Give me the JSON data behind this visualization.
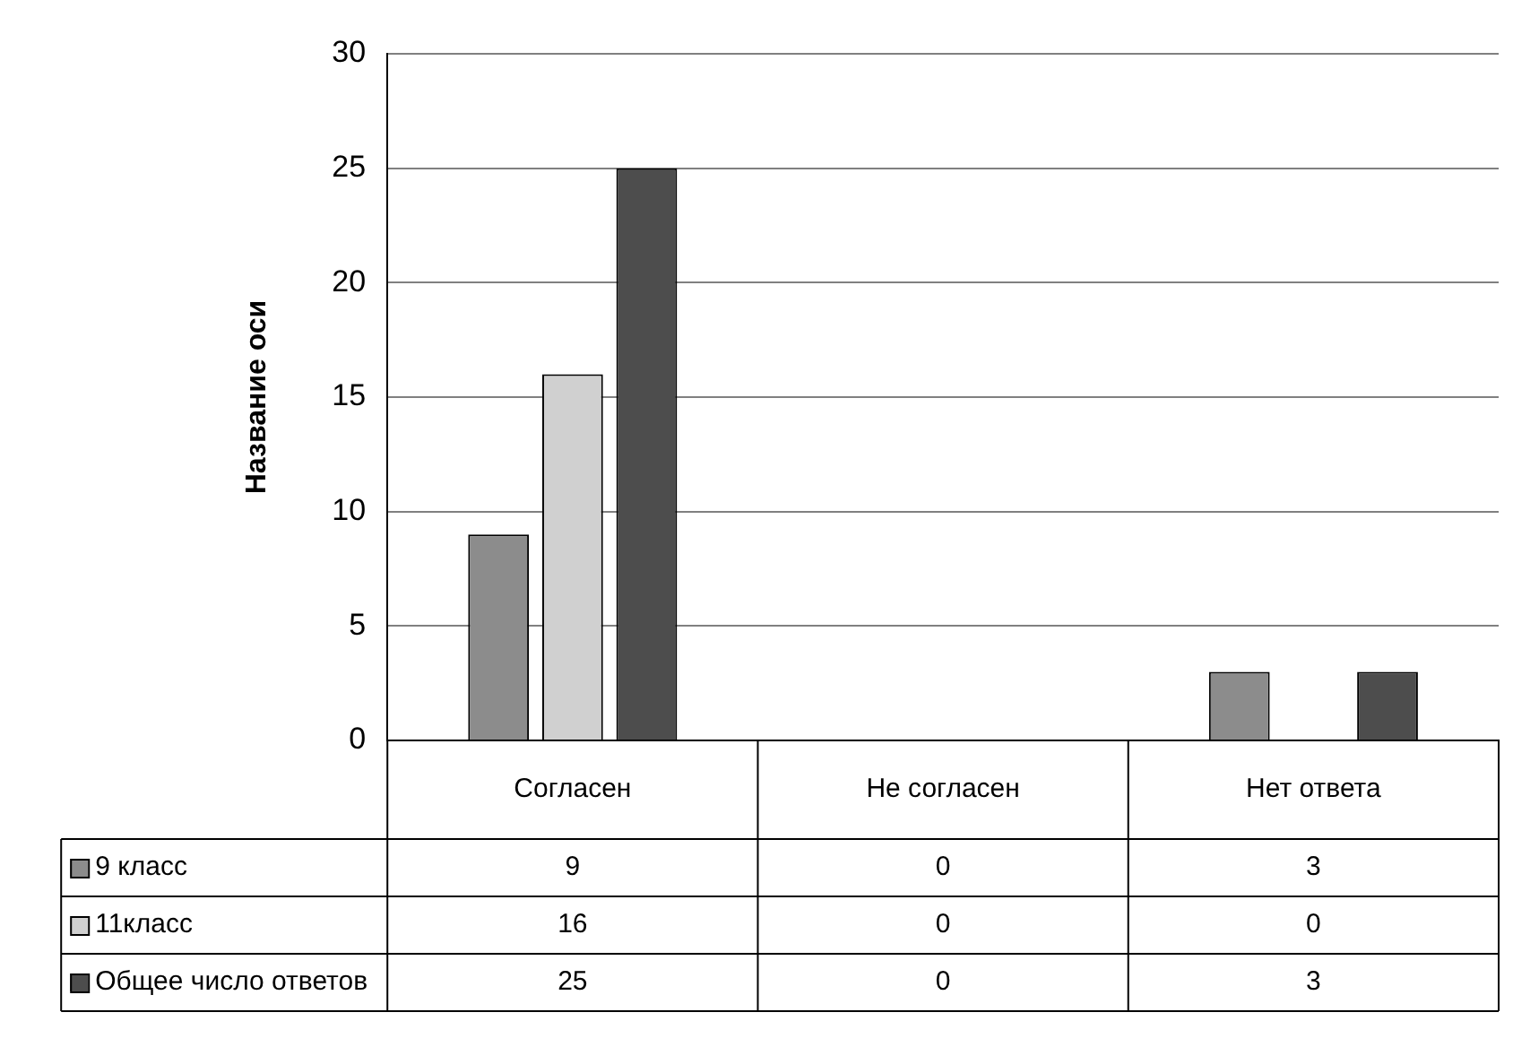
{
  "chart_data": {
    "type": "bar",
    "ylabel": "Название оси",
    "categories": [
      "Согласен",
      "Не согласен",
      "Нет ответа"
    ],
    "series": [
      {
        "name": "9 класс",
        "color": "#8c8c8c",
        "values": [
          9,
          0,
          3
        ]
      },
      {
        "name": "11класс",
        "color": "#d0d0d0",
        "values": [
          16,
          0,
          0
        ]
      },
      {
        "name": "Общее число ответов",
        "color": "#4d4d4d",
        "values": [
          25,
          0,
          3
        ]
      }
    ],
    "ylim": [
      0,
      30
    ],
    "yticks": [
      0,
      5,
      10,
      15,
      20,
      25,
      30
    ],
    "grid": "y",
    "legend": "bottom",
    "data_labels": true
  }
}
